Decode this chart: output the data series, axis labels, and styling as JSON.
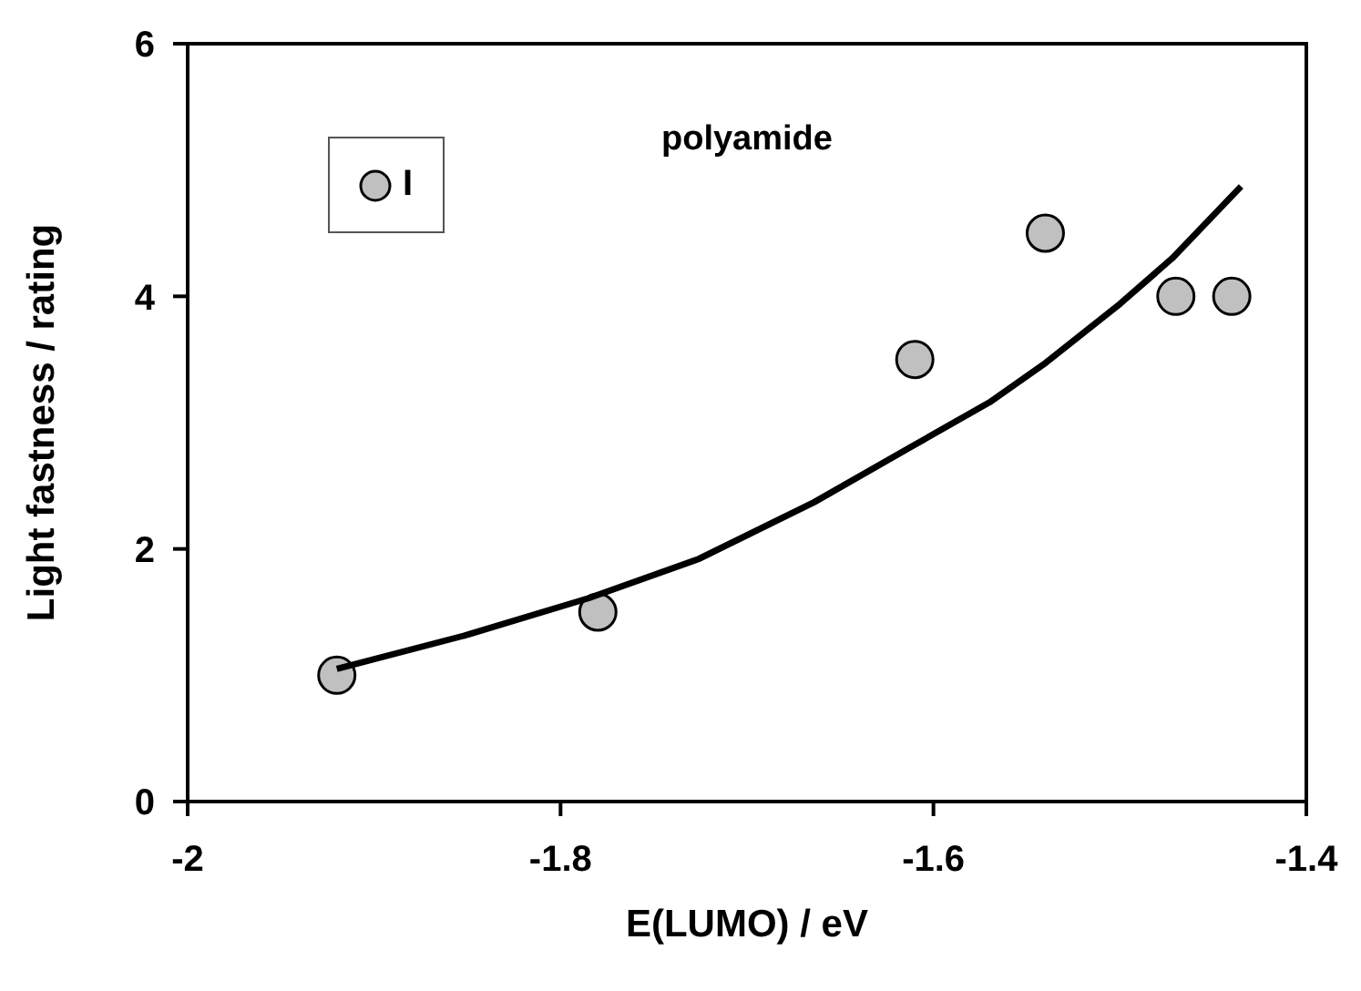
{
  "chart_data": {
    "type": "scatter",
    "title": "polyamide",
    "xlabel": "E(LUMO) / eV",
    "ylabel": "Light fastness / rating",
    "xlim": [
      -2,
      -1.4
    ],
    "xticks": [
      -2,
      -1.8,
      -1.6,
      -1.4
    ],
    "ylim": [
      0,
      6
    ],
    "yticks": [
      0,
      2,
      4,
      6
    ],
    "legend": "top left",
    "series": [
      {
        "name": "I",
        "marker": "circle",
        "color": "#c0c0c0",
        "x": [
          -1.92,
          -1.78,
          -1.61,
          -1.54,
          -1.47,
          -1.44
        ],
        "values": [
          1.0,
          1.5,
          3.5,
          4.5,
          4.0,
          4.0
        ]
      },
      {
        "type": "line",
        "color": "#000000",
        "x": [
          -1.92,
          -1.85,
          -1.785,
          -1.726,
          -1.664,
          -1.613,
          -1.57,
          -1.541,
          -1.5,
          -1.472,
          -1.435
        ],
        "values": [
          1.05,
          1.32,
          1.61,
          1.92,
          2.37,
          2.8,
          3.16,
          3.46,
          3.94,
          4.3,
          4.87
        ]
      }
    ]
  }
}
